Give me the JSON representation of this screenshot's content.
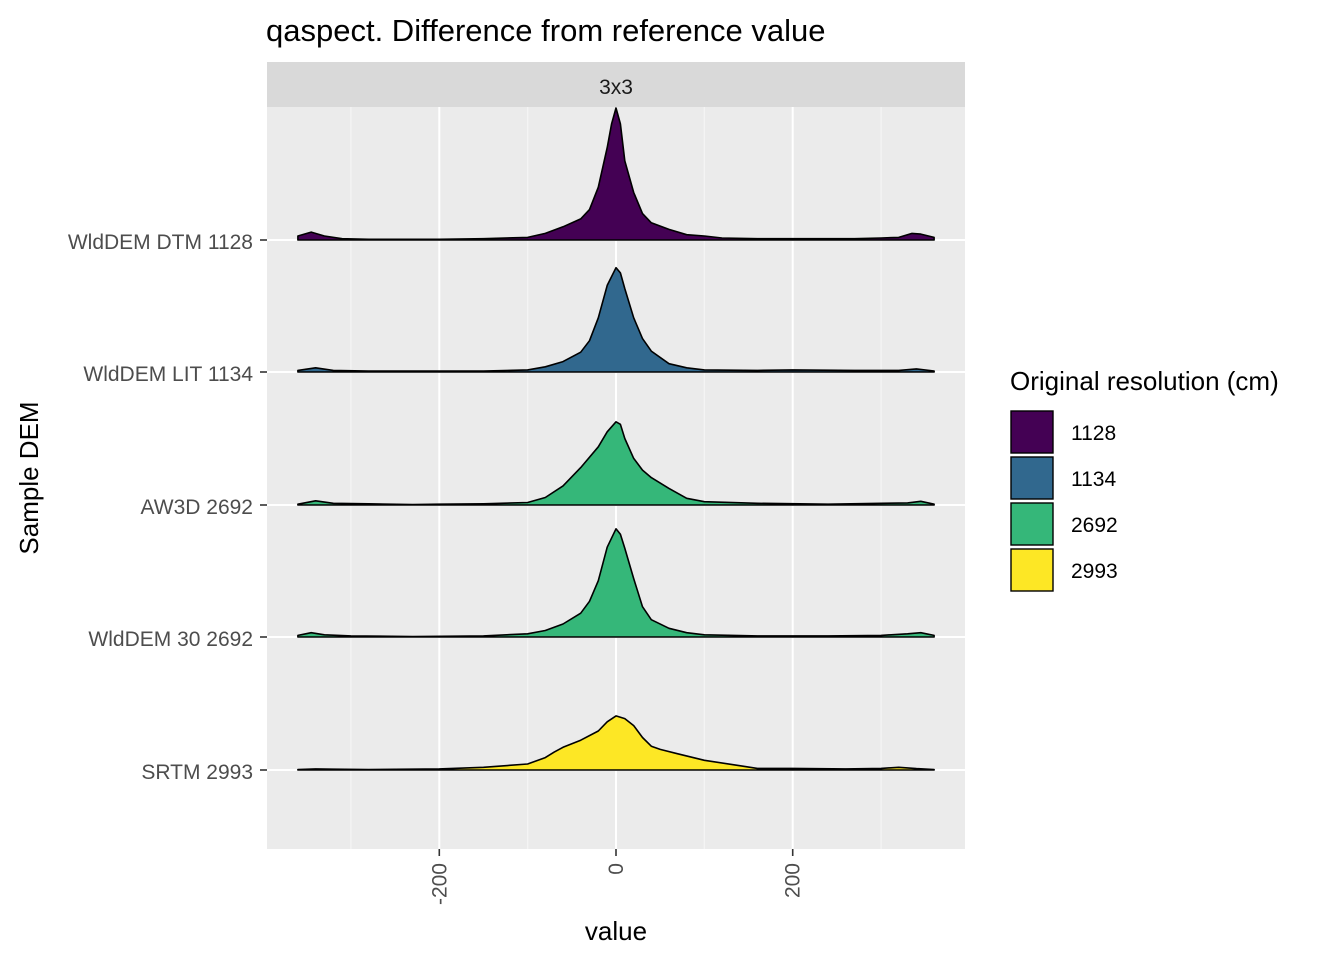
{
  "chart_data": {
    "type": "ridgeline",
    "title": "qaspect. Difference from reference value",
    "facet": "3x3",
    "xlabel": "value",
    "ylabel": "Sample DEM",
    "xlim": [
      -395,
      395
    ],
    "x_ticks": [
      -200,
      0,
      200
    ],
    "x_tick_labels": [
      "-200",
      "0",
      "200"
    ],
    "grid": true,
    "legend": {
      "title": "Original resolution (cm)",
      "position": "right",
      "entries": [
        {
          "label": "1128",
          "color": "#440154"
        },
        {
          "label": "1134",
          "color": "#31688E"
        },
        {
          "label": "2692",
          "color": "#35B779"
        },
        {
          "label": "2993",
          "color": "#FDE725"
        }
      ]
    },
    "categories": [
      "WldDEM DTM 1128",
      "WldDEM LIT 1134",
      "AW3D 2692",
      "WldDEM 30 2692",
      "SRTM 2993"
    ],
    "series": [
      {
        "name": "WldDEM DTM 1128",
        "group": "1128",
        "color": "#440154",
        "x": [
          -360,
          -345,
          -330,
          -310,
          -280,
          -200,
          -150,
          -100,
          -80,
          -60,
          -40,
          -30,
          -20,
          -10,
          -5,
          0,
          5,
          10,
          20,
          30,
          40,
          60,
          80,
          100,
          120,
          160,
          200,
          270,
          300,
          320,
          335,
          345,
          360
        ],
        "density": [
          0.03,
          0.06,
          0.03,
          0.01,
          0.005,
          0.005,
          0.01,
          0.02,
          0.05,
          0.1,
          0.16,
          0.23,
          0.4,
          0.7,
          0.88,
          1.0,
          0.88,
          0.6,
          0.36,
          0.2,
          0.13,
          0.08,
          0.04,
          0.03,
          0.015,
          0.01,
          0.01,
          0.01,
          0.015,
          0.02,
          0.05,
          0.045,
          0.02
        ]
      },
      {
        "name": "WldDEM LIT 1134",
        "group": "1134",
        "color": "#31688E",
        "x": [
          -360,
          -340,
          -320,
          -280,
          -200,
          -150,
          -100,
          -80,
          -60,
          -40,
          -30,
          -20,
          -10,
          0,
          5,
          10,
          20,
          30,
          40,
          60,
          80,
          100,
          160,
          200,
          270,
          320,
          340,
          360
        ],
        "density": [
          0.015,
          0.04,
          0.015,
          0.01,
          0.01,
          0.01,
          0.02,
          0.05,
          0.1,
          0.19,
          0.3,
          0.52,
          0.83,
          1.0,
          0.95,
          0.8,
          0.52,
          0.32,
          0.2,
          0.08,
          0.04,
          0.02,
          0.015,
          0.02,
          0.015,
          0.015,
          0.03,
          0.01
        ]
      },
      {
        "name": "AW3D 2692",
        "group": "2692",
        "color": "#35B779",
        "x": [
          -360,
          -340,
          -320,
          -280,
          -230,
          -200,
          -150,
          -100,
          -80,
          -60,
          -40,
          -20,
          -10,
          0,
          5,
          10,
          20,
          30,
          40,
          60,
          80,
          100,
          160,
          240,
          300,
          330,
          345,
          360
        ],
        "density": [
          0.01,
          0.05,
          0.02,
          0.015,
          0.005,
          0.01,
          0.015,
          0.03,
          0.09,
          0.23,
          0.45,
          0.7,
          0.88,
          1.0,
          0.97,
          0.8,
          0.56,
          0.42,
          0.33,
          0.2,
          0.08,
          0.04,
          0.02,
          0.01,
          0.02,
          0.025,
          0.045,
          0.01
        ]
      },
      {
        "name": "WldDEM 30 2692",
        "group": "2692",
        "color": "#35B779",
        "x": [
          -360,
          -345,
          -330,
          -300,
          -230,
          -150,
          -100,
          -80,
          -60,
          -40,
          -30,
          -20,
          -10,
          0,
          5,
          10,
          20,
          30,
          40,
          60,
          80,
          100,
          160,
          240,
          300,
          330,
          345,
          360
        ],
        "density": [
          0.015,
          0.04,
          0.02,
          0.01,
          0.005,
          0.01,
          0.03,
          0.06,
          0.12,
          0.22,
          0.33,
          0.52,
          0.83,
          1.0,
          0.95,
          0.82,
          0.54,
          0.28,
          0.16,
          0.08,
          0.04,
          0.02,
          0.01,
          0.01,
          0.015,
          0.03,
          0.04,
          0.015
        ]
      },
      {
        "name": "SRTM 2993",
        "group": "2993",
        "color": "#FDE725",
        "x": [
          -360,
          -340,
          -320,
          -280,
          -200,
          -150,
          -100,
          -80,
          -70,
          -60,
          -40,
          -20,
          -10,
          0,
          10,
          20,
          30,
          40,
          50,
          70,
          100,
          140,
          160,
          200,
          260,
          300,
          320,
          340,
          360
        ],
        "density": [
          0.01,
          0.02,
          0.015,
          0.01,
          0.02,
          0.05,
          0.11,
          0.23,
          0.33,
          0.42,
          0.55,
          0.72,
          0.89,
          1.0,
          0.95,
          0.82,
          0.6,
          0.44,
          0.38,
          0.3,
          0.18,
          0.08,
          0.03,
          0.03,
          0.02,
          0.03,
          0.05,
          0.025,
          0.01
        ]
      }
    ],
    "peak_heights": [
      1.0,
      0.79,
      0.63,
      0.82,
      0.41
    ]
  }
}
